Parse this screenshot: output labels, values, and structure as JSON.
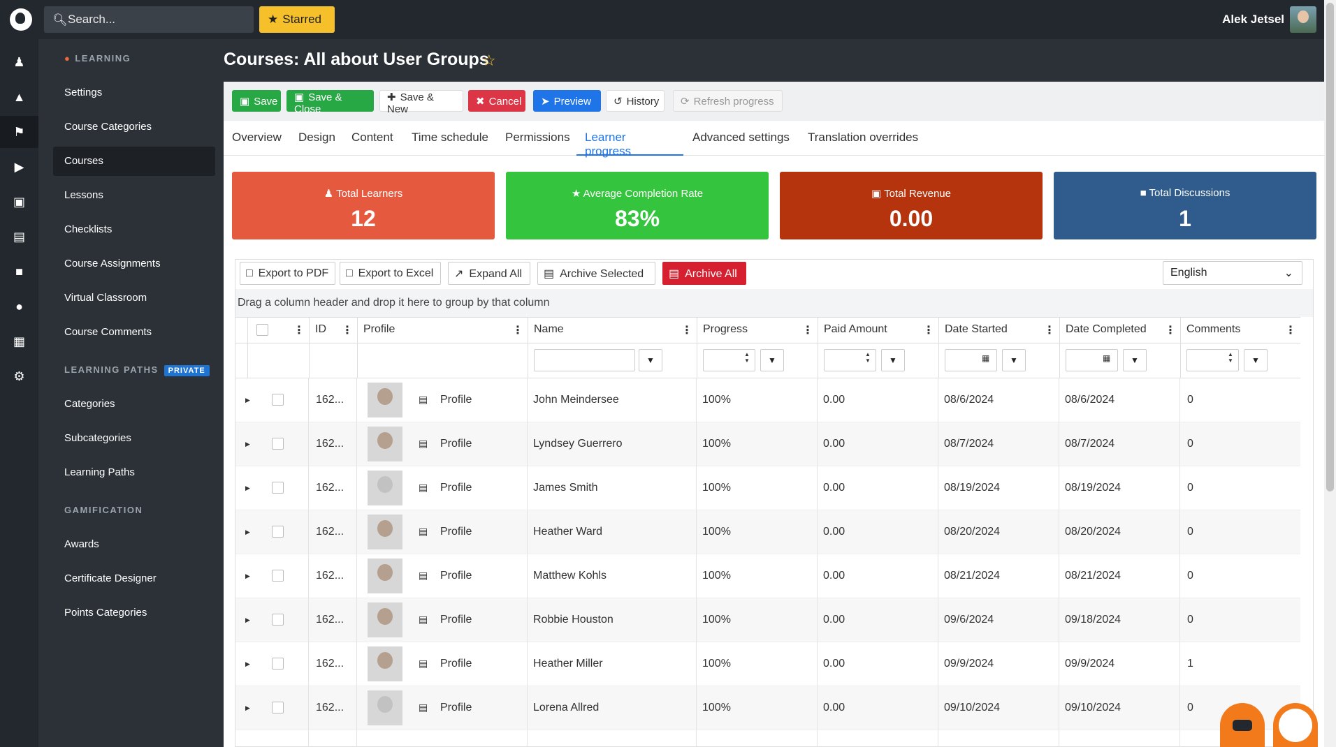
{
  "topbar": {
    "search_placeholder": "Search...",
    "starred_label": "Starred",
    "user_name": "Alek Jetsel"
  },
  "rail": {
    "icons": [
      "users-icon",
      "cube-icon",
      "graduation-cap-icon",
      "megaphone-icon",
      "money-icon",
      "chart-icon",
      "comment-icon",
      "palette-icon",
      "calendar-icon",
      "gear-icon"
    ],
    "active_index": 2
  },
  "sidebar": {
    "section_learning": "LEARNING",
    "learning_items": [
      "Settings",
      "Course Categories",
      "Courses",
      "Lessons",
      "Checklists",
      "Course Assignments",
      "Virtual Classroom",
      "Course Comments"
    ],
    "active_item": "Courses",
    "section_paths": "LEARNING PATHS",
    "private_badge": "PRIVATE",
    "paths_items": [
      "Categories",
      "Subcategories",
      "Learning Paths"
    ],
    "section_gamification": "GAMIFICATION",
    "gamification_items": [
      "Awards",
      "Certificate Designer",
      "Points Categories"
    ]
  },
  "page": {
    "title": "Courses: All about User Groups"
  },
  "toolbar": {
    "save": "Save",
    "save_close": "Save & Close",
    "save_new": "Save & New",
    "cancel": "Cancel",
    "preview": "Preview",
    "history": "History",
    "refresh": "Refresh progress"
  },
  "tabs": [
    "Overview",
    "Design",
    "Content",
    "Time schedule",
    "Permissions",
    "Learner progress",
    "Advanced settings",
    "Translation overrides"
  ],
  "active_tab": "Learner progress",
  "stats": [
    {
      "label": "Total Learners",
      "value": "12",
      "color": "#e55a3f"
    },
    {
      "label": "Average Completion Rate",
      "value": "83%",
      "color": "#35c43e"
    },
    {
      "label": "Total Revenue",
      "value": "0.00",
      "color": "#b5330d"
    },
    {
      "label": "Total Discussions",
      "value": "1",
      "color": "#2f5c8c"
    }
  ],
  "grid": {
    "export_pdf": "Export to PDF",
    "export_excel": "Export to Excel",
    "expand_all": "Expand All",
    "archive_selected": "Archive Selected",
    "archive_all": "Archive All",
    "language": "English",
    "group_hint": "Drag a column header and drop it here to group by that column",
    "columns": [
      "ID",
      "Profile",
      "Name",
      "Progress",
      "Paid Amount",
      "Date Started",
      "Date Completed",
      "Comments"
    ],
    "rows": [
      {
        "id": "162...",
        "profile": "Profile",
        "name": "John Meindersee",
        "progress": "100%",
        "paid": "0.00",
        "started": "08/6/2024",
        "completed": "08/6/2024",
        "comments": "0",
        "photo": true
      },
      {
        "id": "162...",
        "profile": "Profile",
        "name": "Lyndsey Guerrero",
        "progress": "100%",
        "paid": "0.00",
        "started": "08/7/2024",
        "completed": "08/7/2024",
        "comments": "0",
        "photo": true
      },
      {
        "id": "162...",
        "profile": "Profile",
        "name": "James Smith",
        "progress": "100%",
        "paid": "0.00",
        "started": "08/19/2024",
        "completed": "08/19/2024",
        "comments": "0",
        "photo": false
      },
      {
        "id": "162...",
        "profile": "Profile",
        "name": "Heather Ward",
        "progress": "100%",
        "paid": "0.00",
        "started": "08/20/2024",
        "completed": "08/20/2024",
        "comments": "0",
        "photo": true
      },
      {
        "id": "162...",
        "profile": "Profile",
        "name": "Matthew Kohls",
        "progress": "100%",
        "paid": "0.00",
        "started": "08/21/2024",
        "completed": "08/21/2024",
        "comments": "0",
        "photo": true
      },
      {
        "id": "162...",
        "profile": "Profile",
        "name": "Robbie Houston",
        "progress": "100%",
        "paid": "0.00",
        "started": "09/6/2024",
        "completed": "09/18/2024",
        "comments": "0",
        "photo": true
      },
      {
        "id": "162...",
        "profile": "Profile",
        "name": "Heather Miller",
        "progress": "100%",
        "paid": "0.00",
        "started": "09/9/2024",
        "completed": "09/9/2024",
        "comments": "1",
        "photo": true
      },
      {
        "id": "162...",
        "profile": "Profile",
        "name": "Lorena Allred",
        "progress": "100%",
        "paid": "0.00",
        "started": "09/10/2024",
        "completed": "09/10/2024",
        "comments": "0",
        "photo": false
      }
    ]
  }
}
